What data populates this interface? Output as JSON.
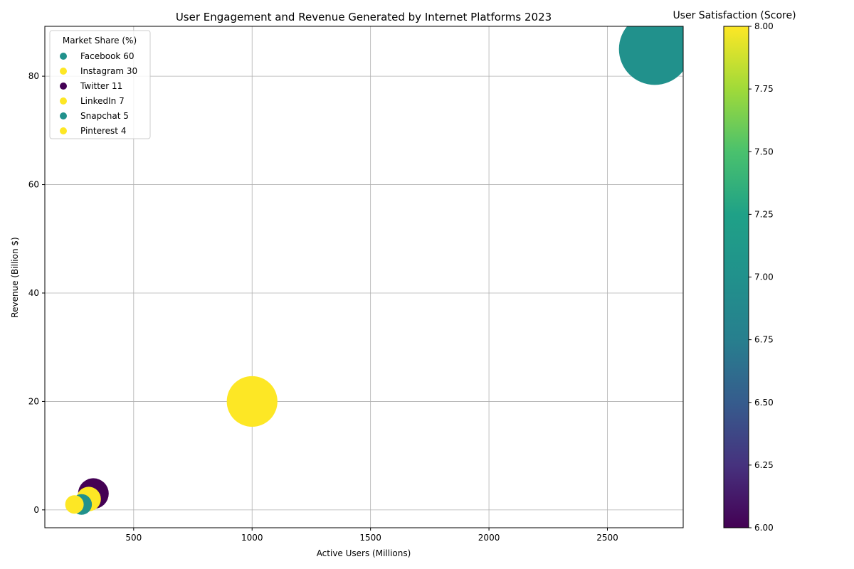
{
  "chart_data": {
    "type": "scatter",
    "title": "User Engagement and Revenue Generated by Internet Platforms 2023",
    "xlabel": "Active Users (Millions)",
    "ylabel": "Revenue (Billion $)",
    "xlim": [
      125,
      2820
    ],
    "ylim": [
      -3.3,
      89.2
    ],
    "xticks": [
      500,
      1000,
      1500,
      2000,
      2500
    ],
    "yticks": [
      0,
      20,
      40,
      60,
      80
    ],
    "grid": true,
    "legend": {
      "title": "Market Share (%)",
      "position": "upper-left"
    },
    "colorbar": {
      "label": "User Satisfaction (Score)",
      "range": [
        6,
        8
      ],
      "ticks": [
        "6.00",
        "6.25",
        "6.50",
        "6.75",
        "7.00",
        "7.25",
        "7.50",
        "7.75",
        "8.00"
      ]
    },
    "points": [
      {
        "platform": "Facebook",
        "market_share": 60,
        "legend_label": "Facebook 60",
        "users": 2700,
        "revenue": 85,
        "satisfaction": 7,
        "color": "#21918c"
      },
      {
        "platform": "Instagram",
        "market_share": 30,
        "legend_label": "Instagram 30",
        "users": 1000,
        "revenue": 20,
        "satisfaction": 8,
        "color": "#fde725"
      },
      {
        "platform": "Twitter",
        "market_share": 11,
        "legend_label": "Twitter 11",
        "users": 330,
        "revenue": 3,
        "satisfaction": 6,
        "color": "#440154"
      },
      {
        "platform": "LinkedIn",
        "market_share": 7,
        "legend_label": "LinkedIn 7",
        "users": 310,
        "revenue": 2,
        "satisfaction": 8,
        "color": "#fde725"
      },
      {
        "platform": "Snapchat",
        "market_share": 5,
        "legend_label": "Snapchat 5",
        "users": 280,
        "revenue": 1,
        "satisfaction": 7,
        "color": "#21918c"
      },
      {
        "platform": "Pinterest",
        "market_share": 4,
        "legend_label": "Pinterest 4",
        "users": 250,
        "revenue": 1,
        "satisfaction": 8,
        "color": "#fde725"
      }
    ]
  }
}
